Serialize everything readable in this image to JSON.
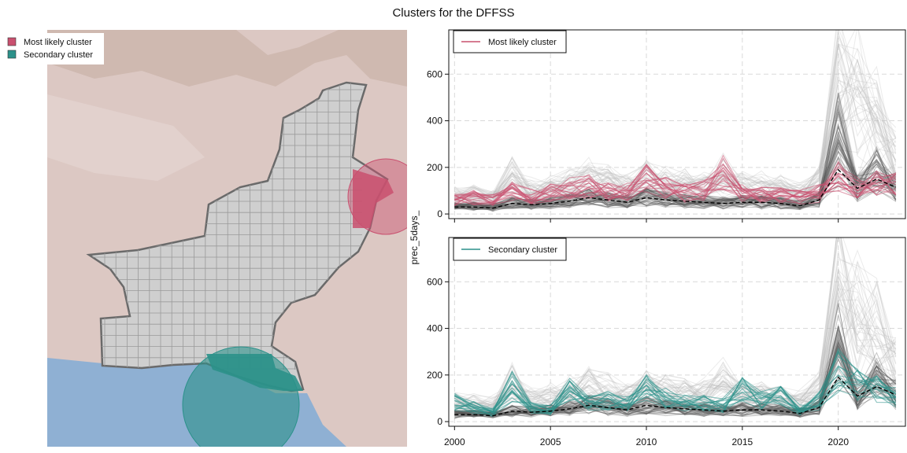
{
  "title": "Clusters for the DFFSS",
  "colors": {
    "most_likely": "#c9506f",
    "secondary": "#2b918a",
    "background_lines": "#5a5a5a",
    "median_line": "#000000",
    "country_fill": "#cfcfcf",
    "terrain": "#dcc8c3",
    "sea": "#8fb0d3"
  },
  "map_legend": {
    "items": [
      {
        "label": "Most likely cluster",
        "color": "#c9506f"
      },
      {
        "label": "Secondary cluster",
        "color": "#2b918a"
      }
    ]
  },
  "chart_data": [
    {
      "type": "line",
      "panel": "top",
      "legend_label": "Most likely cluster",
      "ylabel": "prec_5days_",
      "xlim": [
        1999.7,
        2023.5
      ],
      "ylim": [
        -20,
        790
      ],
      "x_ticks": [
        2000,
        2005,
        2010,
        2015,
        2020
      ],
      "y_ticks": [
        0,
        200,
        400,
        600
      ],
      "grid": true,
      "legend_position": "top-left",
      "x": [
        2000,
        2001,
        2002,
        2003,
        2004,
        2005,
        2006,
        2007,
        2008,
        2009,
        2010,
        2011,
        2012,
        2013,
        2014,
        2015,
        2016,
        2017,
        2018,
        2019,
        2020,
        2021,
        2022,
        2023
      ],
      "median": [
        30,
        30,
        25,
        45,
        40,
        45,
        55,
        70,
        60,
        50,
        70,
        60,
        55,
        50,
        45,
        50,
        50,
        45,
        35,
        60,
        190,
        110,
        150,
        115
      ],
      "series_highlight_mean": [
        60,
        70,
        60,
        95,
        75,
        90,
        110,
        120,
        100,
        95,
        150,
        110,
        90,
        100,
        180,
        90,
        80,
        80,
        75,
        90,
        160,
        110,
        140,
        135
      ]
    },
    {
      "type": "line",
      "panel": "bottom",
      "legend_label": "Secondary cluster",
      "ylabel": "prec_5days_",
      "xlim": [
        1999.7,
        2023.5
      ],
      "ylim": [
        -20,
        790
      ],
      "x_ticks": [
        2000,
        2005,
        2010,
        2015,
        2020
      ],
      "y_ticks": [
        0,
        200,
        400,
        600
      ],
      "grid": true,
      "legend_position": "top-left",
      "x": [
        2000,
        2001,
        2002,
        2003,
        2004,
        2005,
        2006,
        2007,
        2008,
        2009,
        2010,
        2011,
        2012,
        2013,
        2014,
        2015,
        2016,
        2017,
        2018,
        2019,
        2020,
        2021,
        2022,
        2023
      ],
      "median": [
        30,
        30,
        25,
        45,
        40,
        45,
        55,
        70,
        60,
        50,
        70,
        60,
        55,
        50,
        45,
        50,
        50,
        45,
        35,
        60,
        190,
        110,
        150,
        115
      ],
      "series_highlight_mean": [
        85,
        60,
        40,
        150,
        60,
        50,
        130,
        80,
        90,
        80,
        140,
        100,
        80,
        80,
        70,
        140,
        90,
        110,
        50,
        90,
        220,
        160,
        140,
        110
      ]
    }
  ]
}
